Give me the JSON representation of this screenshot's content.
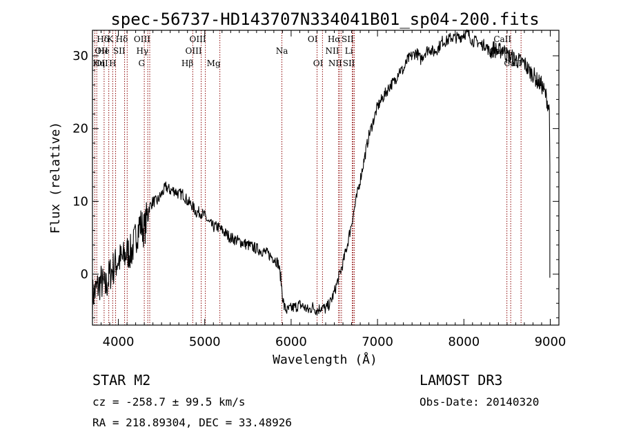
{
  "chart_data": {
    "type": "line",
    "title": "spec-56737-HD143707N334041B01_sp04-200.fits",
    "xlabel": "Wavelength (Å)",
    "ylabel": "Flux (relative)",
    "xlim": [
      3700,
      9100
    ],
    "ylim": [
      -7,
      33.5
    ],
    "xticks": [
      4000,
      5000,
      6000,
      7000,
      8000,
      9000
    ],
    "yticks": [
      0,
      10,
      20,
      30
    ],
    "series": [
      {
        "name": "spectrum",
        "x": [
          3700,
          3750,
          3800,
          3850,
          3900,
          3950,
          4000,
          4050,
          4100,
          4150,
          4200,
          4250,
          4300,
          4350,
          4400,
          4450,
          4500,
          4550,
          4600,
          4650,
          4700,
          4750,
          4800,
          4850,
          4900,
          4950,
          5000,
          5050,
          5100,
          5150,
          5200,
          5300,
          5400,
          5500,
          5600,
          5700,
          5800,
          5850,
          5880,
          5900,
          5920,
          5950,
          6000,
          6050,
          6100,
          6150,
          6200,
          6250,
          6300,
          6350,
          6400,
          6450,
          6500,
          6550,
          6600,
          6650,
          6700,
          6750,
          6800,
          6850,
          6900,
          6950,
          7000,
          7050,
          7100,
          7150,
          7200,
          7250,
          7300,
          7350,
          7400,
          7450,
          7500,
          7550,
          7600,
          7650,
          7700,
          7750,
          7800,
          7850,
          7900,
          7950,
          8000,
          8050,
          8100,
          8150,
          8200,
          8250,
          8300,
          8350,
          8400,
          8450,
          8500,
          8550,
          8600,
          8650,
          8700,
          8750,
          8800,
          8850,
          8900,
          8950,
          8990
        ],
        "y": [
          -3,
          -2,
          -1,
          -2,
          0,
          1,
          2,
          2,
          3,
          3,
          5,
          7,
          6,
          9,
          10,
          10,
          11,
          12,
          11.5,
          11.5,
          11,
          11,
          10,
          9.5,
          8.5,
          8.5,
          8,
          7,
          6.5,
          6.5,
          6,
          5,
          4.5,
          4,
          3.5,
          3,
          2.2,
          1.5,
          -0.5,
          -3,
          -4.5,
          -5,
          -4.7,
          -4.5,
          -4.2,
          -4.5,
          -5,
          -4.5,
          -5,
          -4.5,
          -4.8,
          -4,
          -2.5,
          -0.5,
          1.5,
          4,
          7,
          10,
          13,
          16,
          19,
          21,
          23,
          24,
          25,
          26,
          26.5,
          28,
          28,
          29.5,
          30,
          30.5,
          29.5,
          30.5,
          31,
          30.5,
          31,
          32,
          32,
          32.5,
          32.5,
          32.5,
          33,
          33,
          32,
          32,
          31.5,
          31.5,
          30.5,
          31,
          30.5,
          31,
          30,
          29.8,
          29.5,
          29.2,
          29,
          28,
          27.5,
          26.5,
          26,
          24.5,
          22.5
        ]
      }
    ],
    "line_markers": [
      {
        "label": "Hδ",
        "x": 3750,
        "row": 0,
        "side": "right"
      },
      {
        "label": "K",
        "x": 3934,
        "row": 0,
        "side": "left"
      },
      {
        "label": "Hδ",
        "x": 4102,
        "row": 0,
        "side": "left"
      },
      {
        "label": "OIII",
        "x": 4363,
        "row": 0,
        "side": "left"
      },
      {
        "label": "OIII",
        "x": 5007,
        "row": 0,
        "side": "left"
      },
      {
        "label": "OI",
        "x": 6300,
        "row": 0,
        "side": "left"
      },
      {
        "label": "Hα",
        "x": 6563,
        "row": 0,
        "side": "left"
      },
      {
        "label": "SII",
        "x": 6717,
        "row": 0,
        "side": "left"
      },
      {
        "label": "CaII",
        "x": 8542,
        "row": 0,
        "side": "left"
      },
      {
        "label": "OII",
        "x": 3727,
        "row": 1,
        "side": "right"
      },
      {
        "label": "He",
        "x": 3889,
        "row": 1,
        "side": "left"
      },
      {
        "label": "SII",
        "x": 4072,
        "row": 1,
        "side": "left"
      },
      {
        "label": "Hγ",
        "x": 4340,
        "row": 1,
        "side": "left"
      },
      {
        "label": "OIII",
        "x": 4959,
        "row": 1,
        "side": "left"
      },
      {
        "label": "Na",
        "x": 5893,
        "row": 1,
        "side": "center"
      },
      {
        "label": "NII",
        "x": 6548,
        "row": 1,
        "side": "left"
      },
      {
        "label": "Li",
        "x": 6708,
        "row": 1,
        "side": "left"
      },
      {
        "label": "CaII",
        "x": 8498,
        "row": 1,
        "side": "left"
      },
      {
        "label": "OII",
        "x": 3727,
        "row": 2,
        "side": "right"
      },
      {
        "label": "Hη",
        "x": 3835,
        "row": 2,
        "side": "left"
      },
      {
        "label": "H",
        "x": 3968,
        "row": 2,
        "side": "left"
      },
      {
        "label": "G",
        "x": 4300,
        "row": 2,
        "side": "left"
      },
      {
        "label": "Hβ",
        "x": 4861,
        "row": 2,
        "side": "left"
      },
      {
        "label": "Mg",
        "x": 5175,
        "row": 2,
        "side": "left"
      },
      {
        "label": "OI",
        "x": 6363,
        "row": 2,
        "side": "left"
      },
      {
        "label": "NII",
        "x": 6583,
        "row": 2,
        "side": "left"
      },
      {
        "label": "SII",
        "x": 6731,
        "row": 2,
        "side": "left"
      },
      {
        "label": "CaII",
        "x": 8662,
        "row": 2,
        "side": "left"
      }
    ]
  },
  "info": {
    "star_type": "STAR    M2",
    "survey": "LAMOST DR3",
    "cz": "cz = -258.7 ± 99.5 km/s",
    "obs_date": "Obs-Date: 20140320",
    "coords": "RA = 218.89304, DEC =  33.48926"
  },
  "colors": {
    "line": "#000000",
    "marker": "#8b0000"
  }
}
